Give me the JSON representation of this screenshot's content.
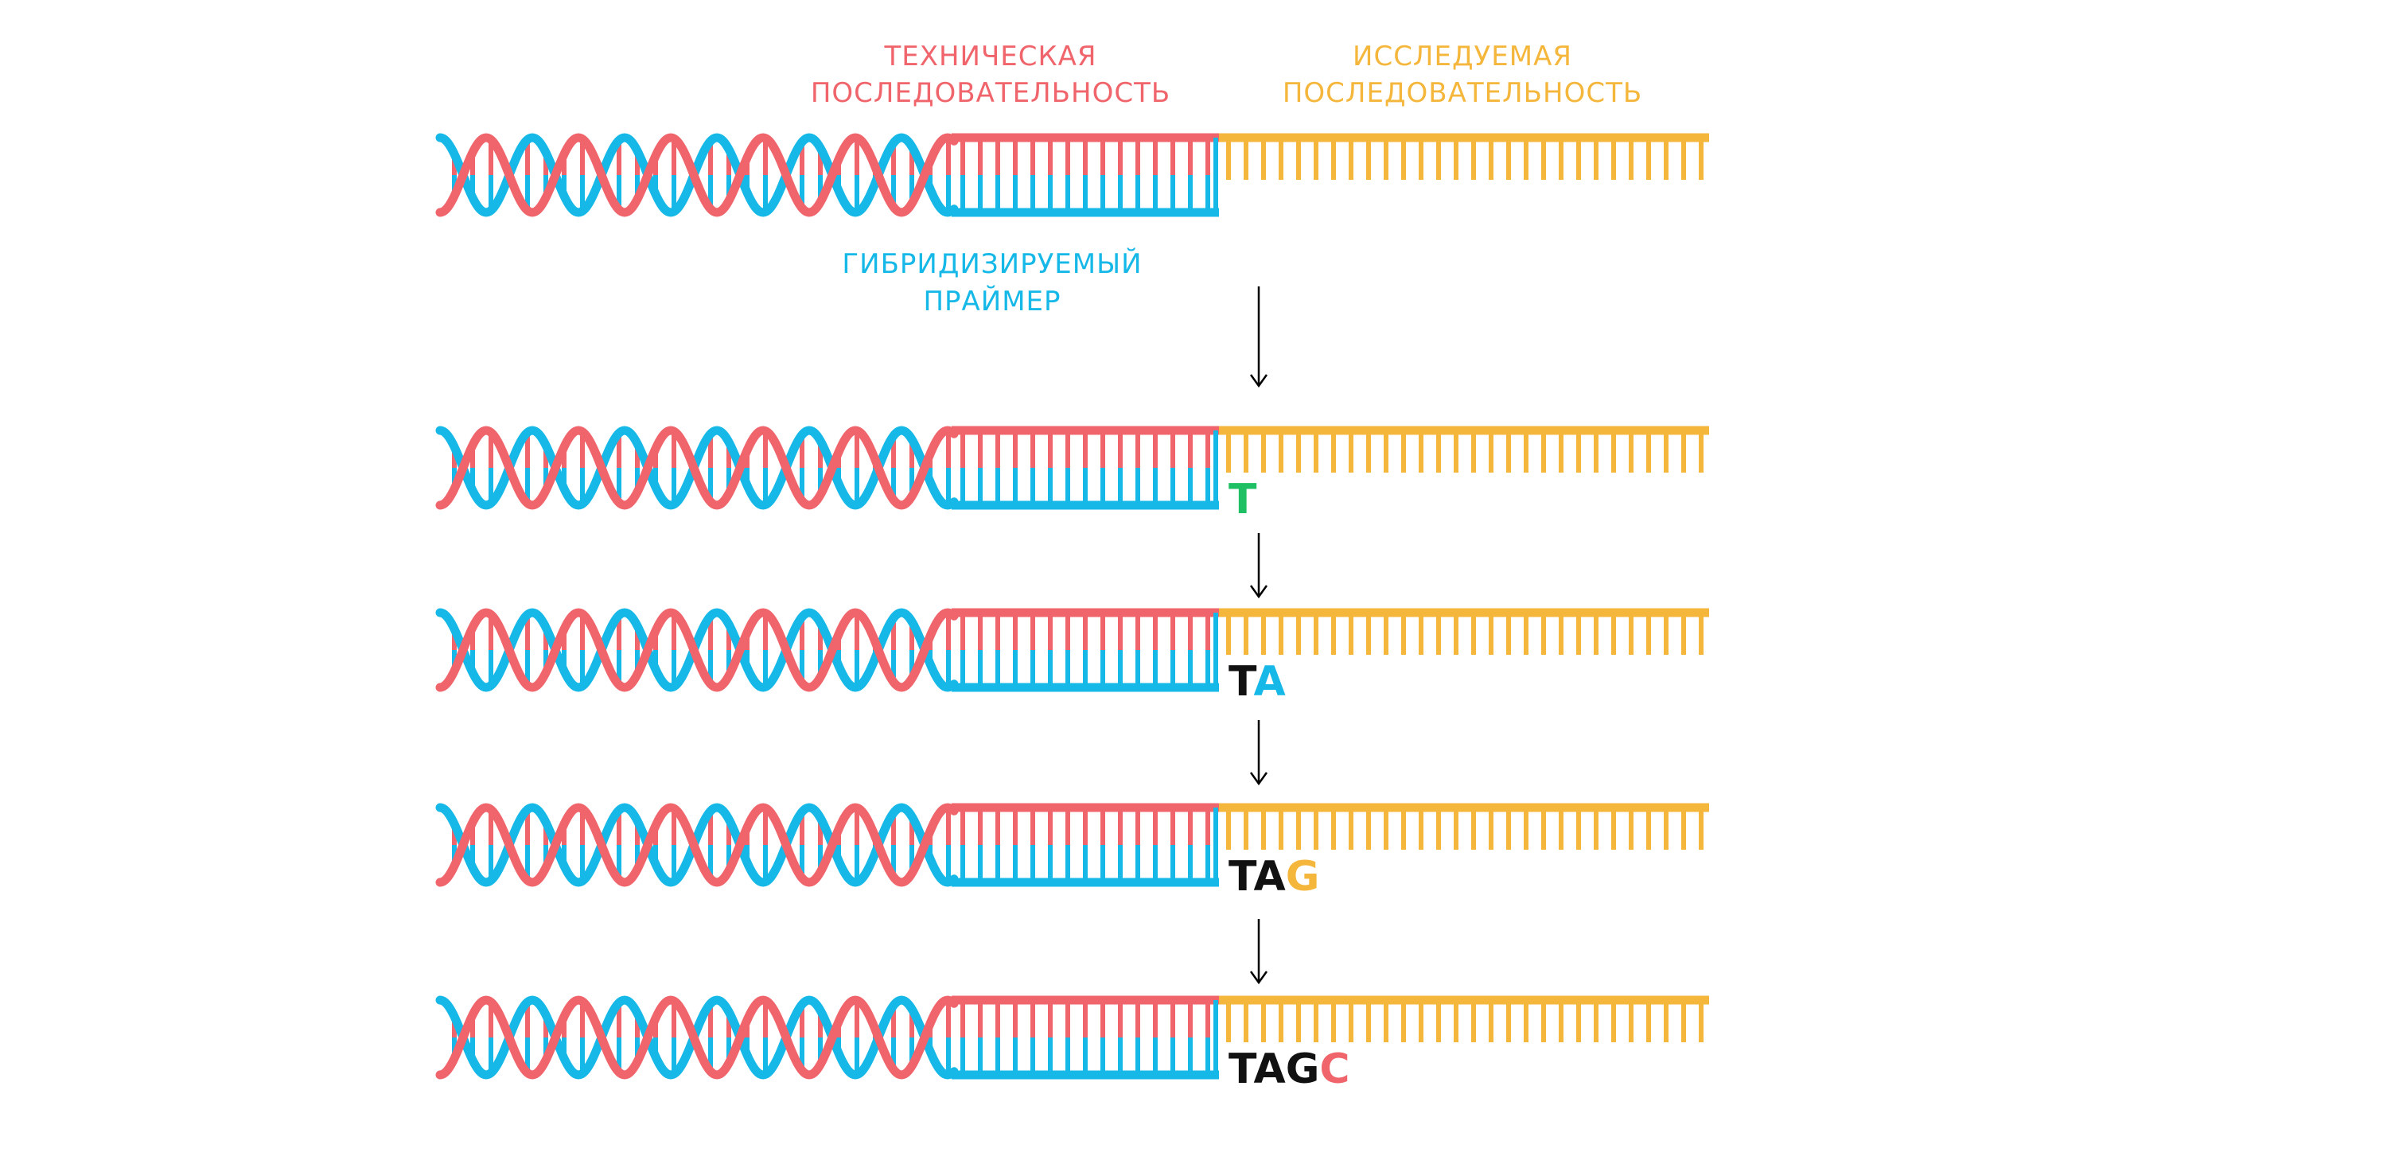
{
  "labels": {
    "technical_line1": "ТЕХНИЧЕСКАЯ",
    "technical_line2": "ПОСЛЕДОВАТЕЛЬНОСТЬ",
    "studied_line1": "ИССЛЕДУЕМАЯ",
    "studied_line2": "ПОСЛЕДОВАТЕЛЬНОСТЬ",
    "primer_line1": "ГИБРИДИЗИРУЕМЫЙ",
    "primer_line2": "ПРАЙМЕР"
  },
  "colors": {
    "red": "#f0656b",
    "blue": "#16b8e8",
    "yellow": "#f5b63c",
    "green": "#1fc063",
    "black": "#111111",
    "arrow": "#000000"
  },
  "steps": [
    {
      "bases": []
    },
    {
      "bases": [
        {
          "letter": "T",
          "color": "#1fc063"
        }
      ]
    },
    {
      "bases": [
        {
          "letter": "T",
          "color": "#111111"
        },
        {
          "letter": "A",
          "color": "#16b8e8"
        }
      ]
    },
    {
      "bases": [
        {
          "letter": "T",
          "color": "#111111"
        },
        {
          "letter": "A",
          "color": "#111111"
        },
        {
          "letter": "G",
          "color": "#f5b63c"
        }
      ]
    },
    {
      "bases": [
        {
          "letter": "T",
          "color": "#111111"
        },
        {
          "letter": "A",
          "color": "#111111"
        },
        {
          "letter": "G",
          "color": "#111111"
        },
        {
          "letter": "C",
          "color": "#f0656b"
        }
      ]
    }
  ]
}
